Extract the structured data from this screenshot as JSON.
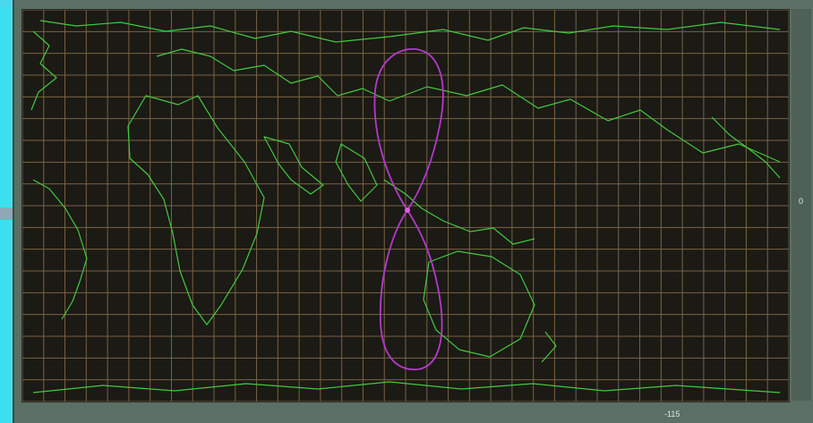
{
  "map": {
    "latitude_label": "0",
    "longitude_label": "-115",
    "colors": {
      "background": "#1b1a15",
      "grid": "#8a6f4a",
      "coastline": "#43c83e",
      "ground_track": "#b33ac9"
    }
  }
}
